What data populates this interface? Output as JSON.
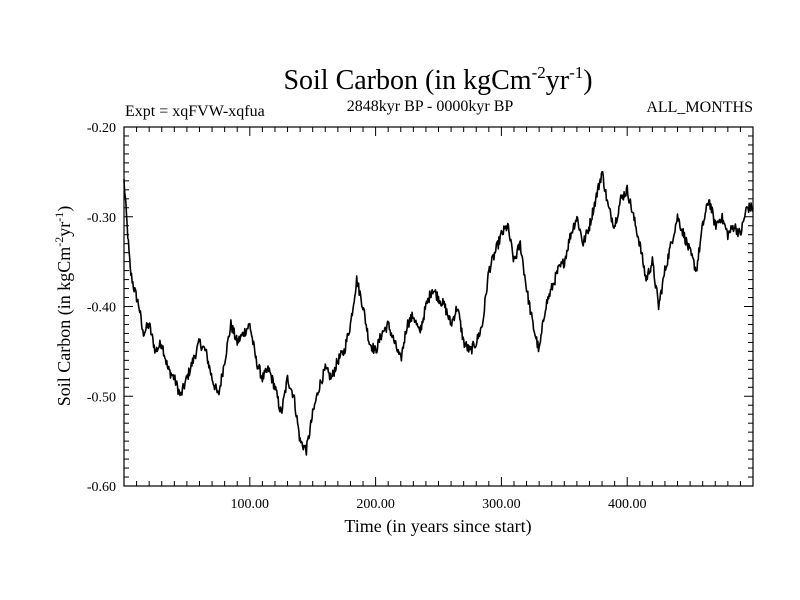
{
  "chart_data": {
    "type": "line",
    "title_main": "Soil Carbon (in kgCm",
    "title_sup1": "-2",
    "title_mid": "yr",
    "title_sup2": "-1",
    "title_end": ")",
    "subtitle_left": "Expt = xqFVW-xqfua",
    "subtitle_center": "2848kyr BP - 0000kyr BP",
    "subtitle_right": "ALL_MONTHS",
    "xlabel": "Time (in years since start)",
    "ylabel_main": "Soil Carbon (in kgCm",
    "ylabel_sup1": "-2",
    "ylabel_mid": "yr",
    "ylabel_sup2": "-1",
    "ylabel_end": ")",
    "xlim": [
      0,
      500
    ],
    "ylim": [
      -0.6,
      -0.2
    ],
    "x_ticks": [
      100,
      200,
      300,
      400
    ],
    "x_tick_labels": [
      "100.00",
      "200.00",
      "300.00",
      "400.00"
    ],
    "y_ticks": [
      -0.6,
      -0.5,
      -0.4,
      -0.3,
      -0.2
    ],
    "y_tick_labels": [
      "-0.60",
      "-0.50",
      "-0.40",
      "-0.30",
      "-0.20"
    ],
    "series": [
      {
        "name": "Soil Carbon",
        "x": [
          0,
          2,
          5,
          8,
          12,
          15,
          20,
          25,
          30,
          35,
          40,
          45,
          50,
          55,
          60,
          65,
          70,
          75,
          80,
          85,
          90,
          95,
          100,
          105,
          110,
          115,
          120,
          125,
          130,
          135,
          140,
          145,
          150,
          155,
          160,
          165,
          170,
          175,
          180,
          185,
          190,
          195,
          200,
          205,
          210,
          215,
          220,
          225,
          230,
          235,
          240,
          245,
          250,
          255,
          260,
          265,
          270,
          275,
          280,
          285,
          290,
          295,
          300,
          305,
          310,
          315,
          320,
          325,
          330,
          335,
          340,
          345,
          350,
          355,
          360,
          365,
          370,
          375,
          380,
          385,
          390,
          395,
          400,
          405,
          410,
          415,
          420,
          425,
          430,
          435,
          440,
          445,
          450,
          455,
          460,
          465,
          470,
          475,
          480,
          485,
          490,
          495,
          500
        ],
        "values": [
          -0.26,
          -0.3,
          -0.36,
          -0.38,
          -0.4,
          -0.43,
          -0.42,
          -0.45,
          -0.44,
          -0.47,
          -0.48,
          -0.5,
          -0.48,
          -0.46,
          -0.44,
          -0.45,
          -0.48,
          -0.5,
          -0.46,
          -0.42,
          -0.44,
          -0.43,
          -0.42,
          -0.46,
          -0.48,
          -0.47,
          -0.49,
          -0.52,
          -0.48,
          -0.5,
          -0.55,
          -0.56,
          -0.52,
          -0.49,
          -0.47,
          -0.48,
          -0.46,
          -0.45,
          -0.42,
          -0.37,
          -0.4,
          -0.44,
          -0.45,
          -0.43,
          -0.42,
          -0.44,
          -0.46,
          -0.42,
          -0.41,
          -0.43,
          -0.4,
          -0.38,
          -0.39,
          -0.4,
          -0.42,
          -0.4,
          -0.44,
          -0.45,
          -0.44,
          -0.42,
          -0.36,
          -0.34,
          -0.32,
          -0.31,
          -0.35,
          -0.33,
          -0.38,
          -0.42,
          -0.45,
          -0.4,
          -0.38,
          -0.36,
          -0.35,
          -0.32,
          -0.3,
          -0.33,
          -0.31,
          -0.28,
          -0.25,
          -0.29,
          -0.31,
          -0.28,
          -0.27,
          -0.3,
          -0.33,
          -0.37,
          -0.35,
          -0.4,
          -0.36,
          -0.33,
          -0.3,
          -0.32,
          -0.34,
          -0.36,
          -0.31,
          -0.28,
          -0.31,
          -0.3,
          -0.32,
          -0.31,
          -0.32,
          -0.29,
          -0.29
        ]
      }
    ],
    "grid": false
  }
}
